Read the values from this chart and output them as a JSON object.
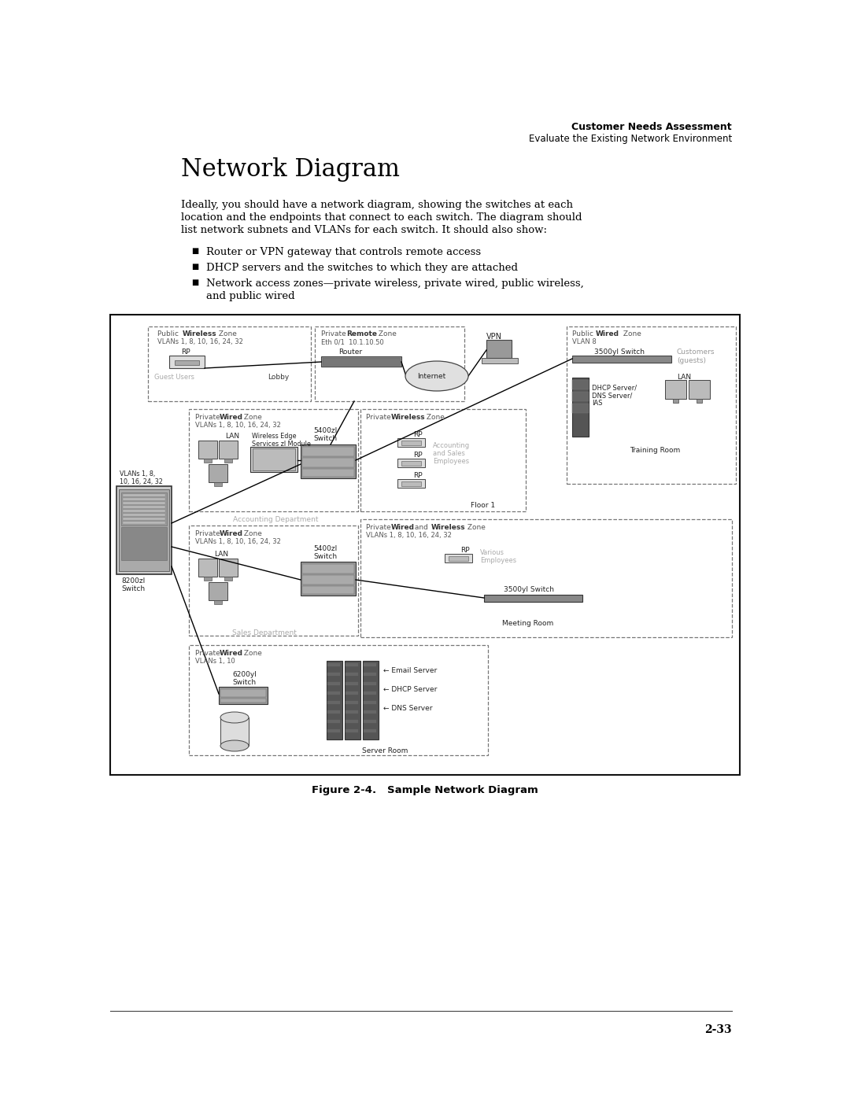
{
  "page_bg": "#ffffff",
  "header_bold": "Customer Needs Assessment",
  "header_sub": "Evaluate the Existing Network Environment",
  "section_title": "Network Diagram",
  "body_text_line1": "Ideally, you should have a network diagram, showing the switches at each",
  "body_text_line2": "location and the endpoints that connect to each switch. The diagram should",
  "body_text_line3": "list network subnets and VLANs for each switch. It should also show:",
  "bullet1": "Router or VPN gateway that controls remote access",
  "bullet2": "DHCP servers and the switches to which they are attached",
  "bullet3a": "Network access zones—private wireless, private wired, public wireless,",
  "bullet3b": "and public wired",
  "figure_caption": "Figure 2-4.   Sample Network Diagram",
  "page_num": "2-33",
  "text_color": "#000000",
  "gray_text": "#888888",
  "zone_color": "#777777",
  "line_color": "#000000"
}
